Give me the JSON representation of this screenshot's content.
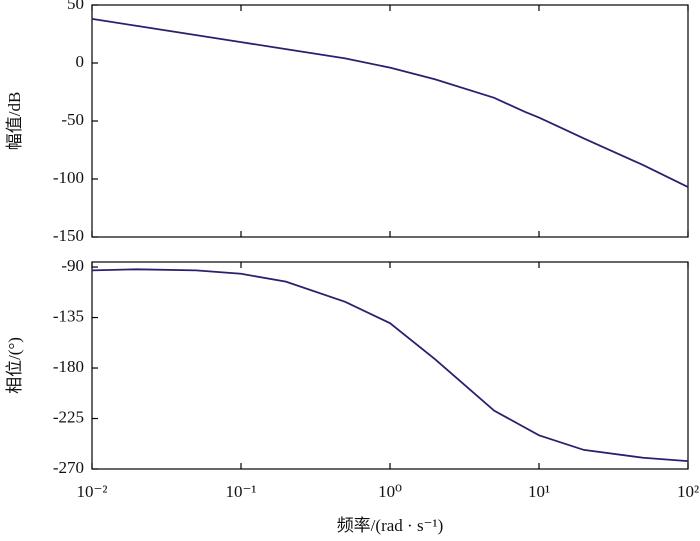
{
  "chart_data": [
    {
      "type": "line",
      "ylabel": "幅值/dB",
      "xscale": "log",
      "xlim": [
        0.01,
        100
      ],
      "xticks": [
        0.01,
        0.1,
        1,
        10,
        100
      ],
      "xtick_labels": false,
      "ylim": [
        -150,
        50
      ],
      "yticks": [
        -150,
        -100,
        -50,
        0,
        50
      ],
      "x": [
        0.01,
        0.02,
        0.05,
        0.1,
        0.2,
        0.5,
        1,
        2,
        5,
        8,
        10,
        20,
        50,
        100
      ],
      "series": [
        {
          "color": "#2e1f6e",
          "values": [
            38,
            32,
            24,
            18,
            12,
            4,
            -4,
            -14,
            -30,
            -42,
            -47,
            -65,
            -88,
            -107
          ]
        }
      ]
    },
    {
      "type": "line",
      "ylabel": "相位/(°)",
      "xlabel": "频率/(rad · s⁻¹)",
      "xscale": "log",
      "xlim": [
        0.01,
        100
      ],
      "xticks": [
        {
          "value": 0.01,
          "label": "10⁻²"
        },
        {
          "value": 0.1,
          "label": "10⁻¹"
        },
        {
          "value": 1,
          "label": "10⁰"
        },
        {
          "value": 10,
          "label": "10¹"
        },
        {
          "value": 100,
          "label": "10²"
        }
      ],
      "xtick_labels": true,
      "ylim": [
        -270,
        -85.5
      ],
      "yticks": [
        -270,
        -225,
        -180,
        -135,
        -90
      ],
      "x": [
        0.01,
        0.02,
        0.05,
        0.1,
        0.2,
        0.5,
        1,
        2,
        5,
        10,
        20,
        50,
        100
      ],
      "series": [
        {
          "color": "#2e1f6e",
          "values": [
            -93,
            -92,
            -93,
            -96,
            -103,
            -121,
            -140,
            -172,
            -218,
            -240,
            -253,
            -260,
            -263
          ]
        }
      ]
    }
  ]
}
